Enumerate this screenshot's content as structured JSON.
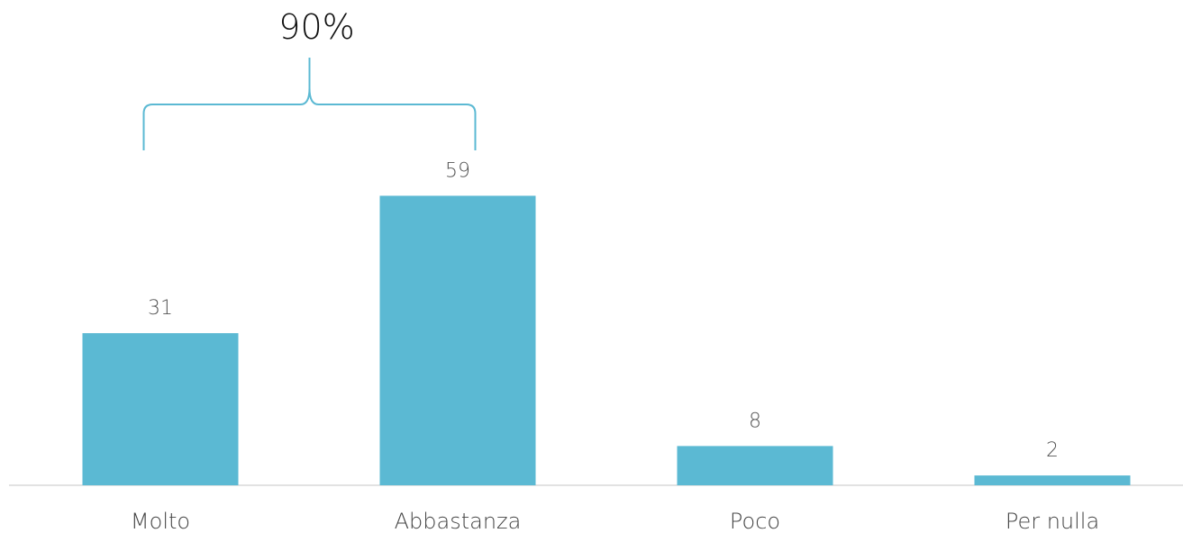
{
  "chart_data": {
    "type": "bar",
    "categories": [
      "Molto",
      "Abbastanza",
      "Poco",
      "Per nulla"
    ],
    "values": [
      31,
      59,
      8,
      2
    ],
    "title": "",
    "xlabel": "",
    "ylabel": "",
    "ylim": [
      0,
      65
    ],
    "grid": false,
    "bar_color": "#5BB9D3",
    "baseline_color": "#D9D9D9",
    "bracket": {
      "label": "90%",
      "spans_categories": [
        "Molto",
        "Abbastanza"
      ],
      "color": "#5BB9D3"
    }
  }
}
